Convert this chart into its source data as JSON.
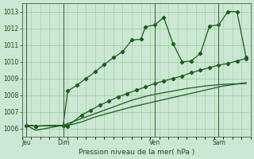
{
  "background_color": "#cce8d4",
  "grid_color": "#99cc99",
  "line_color": "#1a5c1a",
  "title": "Pression niveau de la mer( hPa )",
  "ylim": [
    1005.5,
    1013.5
  ],
  "yticks": [
    1006,
    1007,
    1008,
    1009,
    1010,
    1011,
    1012,
    1013
  ],
  "day_labels": [
    "Jeu",
    "Dim",
    "Ven",
    "Sam"
  ],
  "day_positions": [
    0.5,
    4.5,
    14.5,
    21.5
  ],
  "series1_x": [
    0.5,
    1.5,
    4.5,
    5.0,
    6.0,
    7.0,
    8.0,
    9.0,
    10.0,
    11.0,
    12.0,
    13.0,
    13.5,
    14.5,
    15.5,
    16.5,
    17.5,
    18.5,
    19.5,
    20.5,
    21.5,
    22.5,
    23.5,
    24.5
  ],
  "series1": [
    1006.2,
    1006.15,
    1006.2,
    1008.25,
    1008.6,
    1009.0,
    1009.4,
    1009.85,
    1010.25,
    1010.6,
    1011.3,
    1011.35,
    1012.1,
    1012.2,
    1012.65,
    1011.1,
    1010.0,
    1010.05,
    1010.5,
    1012.15,
    1012.2,
    1013.0,
    1013.0,
    1010.25
  ],
  "series2_x": [
    0.5,
    1.5,
    4.5,
    5.0,
    6.5,
    7.5,
    8.5,
    9.5,
    10.5,
    11.5,
    12.5,
    13.5,
    14.5,
    15.5,
    16.5,
    17.5,
    18.5,
    19.5,
    20.5,
    21.5,
    22.5,
    23.5,
    24.5
  ],
  "series2": [
    1006.2,
    1006.15,
    1006.2,
    1006.15,
    1006.8,
    1007.1,
    1007.4,
    1007.65,
    1007.9,
    1008.1,
    1008.3,
    1008.5,
    1008.7,
    1008.85,
    1009.0,
    1009.15,
    1009.35,
    1009.5,
    1009.65,
    1009.8,
    1009.9,
    1010.05,
    1010.2
  ],
  "series3_x": [
    0.5,
    1.5,
    4.5,
    6.0,
    8.0,
    10.0,
    12.0,
    14.0,
    16.0,
    18.0,
    20.0,
    22.0,
    24.5
  ],
  "series3": [
    1006.2,
    1006.15,
    1006.2,
    1006.5,
    1006.9,
    1007.3,
    1007.7,
    1008.0,
    1008.2,
    1008.4,
    1008.55,
    1008.65,
    1008.7
  ],
  "series4_x": [
    0.5,
    1.5,
    4.5,
    5.5,
    6.5,
    8.0,
    10.0,
    12.0,
    14.0,
    16.0,
    18.0,
    20.0,
    22.0,
    24.5
  ],
  "series4": [
    1006.2,
    1005.9,
    1006.2,
    1006.25,
    1006.4,
    1006.7,
    1007.0,
    1007.3,
    1007.55,
    1007.8,
    1008.05,
    1008.3,
    1008.55,
    1008.75
  ],
  "xlim": [
    0,
    25
  ],
  "n_points": 25
}
